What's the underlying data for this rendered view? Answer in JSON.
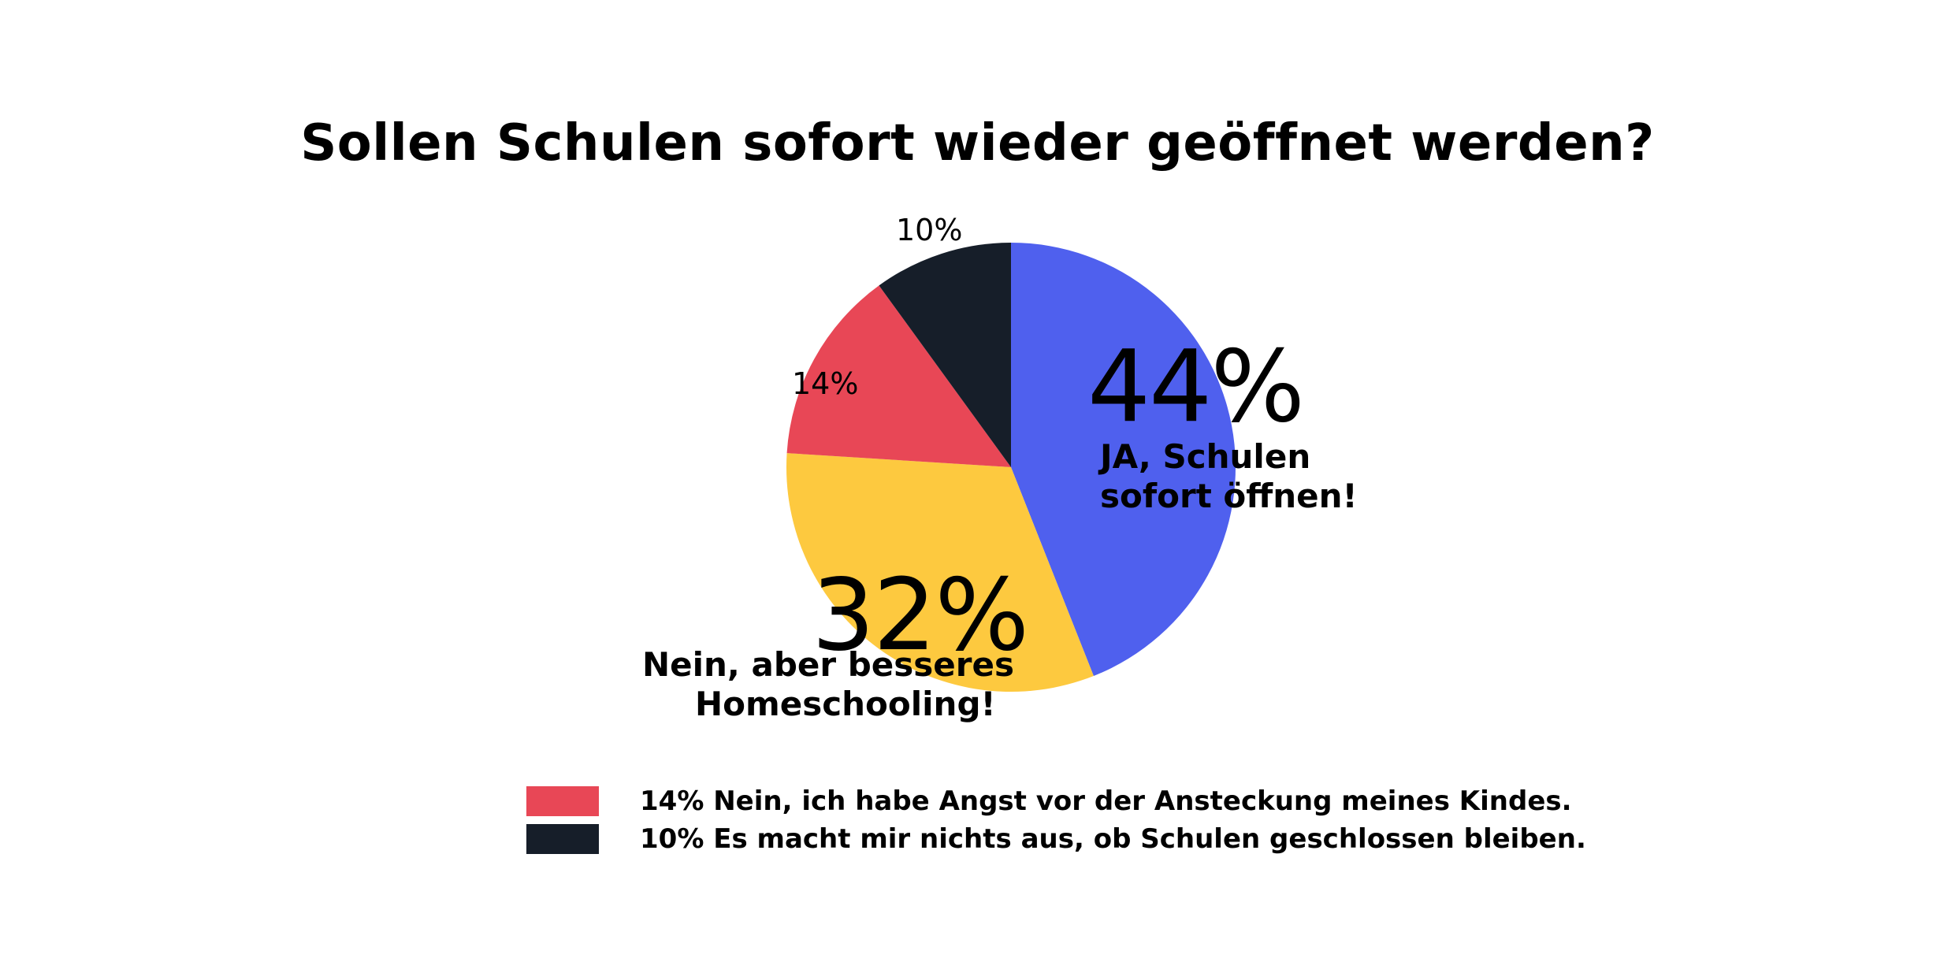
{
  "chart_data": {
    "type": "pie",
    "title": "Sollen Schulen sofort wieder geöffnet werden?",
    "slices": [
      {
        "value": 44,
        "value_label": "44%",
        "label_lines": [
          "JA, Schulen",
          "sofort öffnen!"
        ],
        "color": "#4f60ee"
      },
      {
        "value": 32,
        "value_label": "32%",
        "label_lines": [
          "Nein, aber besseres",
          "Homeschooling!"
        ],
        "color": "#fdc93f"
      },
      {
        "value": 14,
        "value_label": "14%",
        "label_lines": [],
        "color": "#e84756"
      },
      {
        "value": 10,
        "value_label": "10%",
        "label_lines": [],
        "color": "#161e29"
      }
    ],
    "legend": [
      {
        "text": "14% Nein, ich habe Angst vor der Ansteckung meines Kindes.",
        "color": "#e84756"
      },
      {
        "text": "10% Es macht mir nichts aus, ob Schulen geschlossen bleiben.",
        "color": "#161e29"
      }
    ]
  }
}
